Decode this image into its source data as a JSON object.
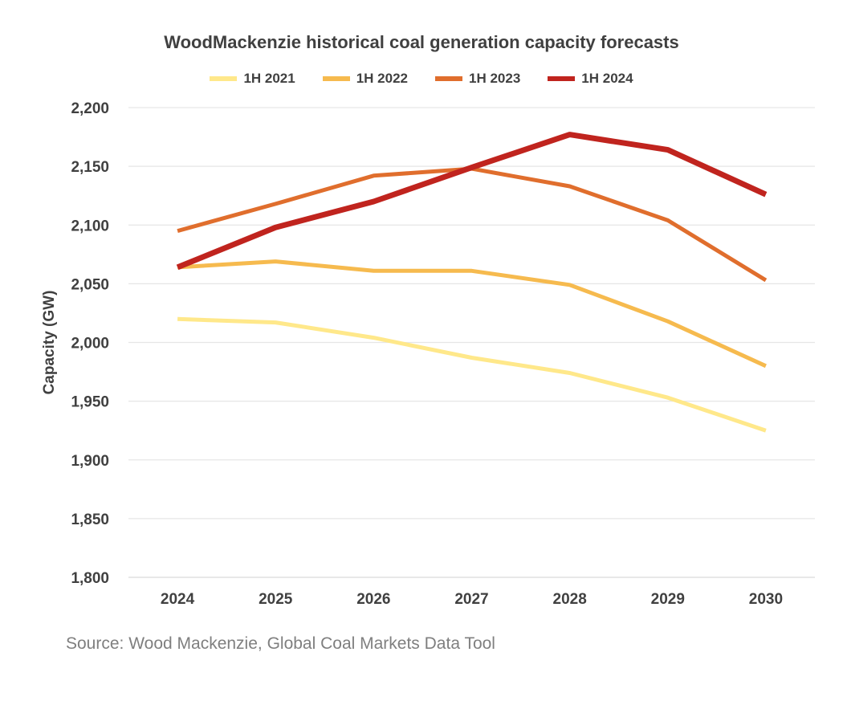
{
  "chart_data": {
    "type": "line",
    "title": "WoodMackenzie historical coal generation capacity forecasts",
    "xlabel": "",
    "ylabel": "Capacity (GW)",
    "ylim": [
      1800,
      2200
    ],
    "y_ticks": [
      "1,800",
      "1,850",
      "1,900",
      "1,950",
      "2,000",
      "2,050",
      "2,100",
      "2,150",
      "2,200"
    ],
    "categories": [
      "2024",
      "2025",
      "2026",
      "2027",
      "2028",
      "2029",
      "2030"
    ],
    "grid": true,
    "legend_position": "top",
    "series": [
      {
        "name": "1H 2021",
        "color": "#FFE88A",
        "values": [
          2020,
          2017,
          2004,
          1987,
          1974,
          1953,
          1925
        ]
      },
      {
        "name": "1H 2022",
        "color": "#F6BA4E",
        "values": [
          2064,
          2069,
          2061,
          2061,
          2049,
          2018,
          1980
        ]
      },
      {
        "name": "1H 2023",
        "color": "#E06E2D",
        "values": [
          2095,
          2118,
          2142,
          2148,
          2133,
          2104,
          2053
        ]
      },
      {
        "name": "1H 2024",
        "color": "#C0241E",
        "values": [
          2064,
          2098,
          2120,
          2149,
          2177,
          2164,
          2126
        ]
      }
    ]
  },
  "source": "Source: Wood Mackenzie, Global Coal Markets Data Tool"
}
